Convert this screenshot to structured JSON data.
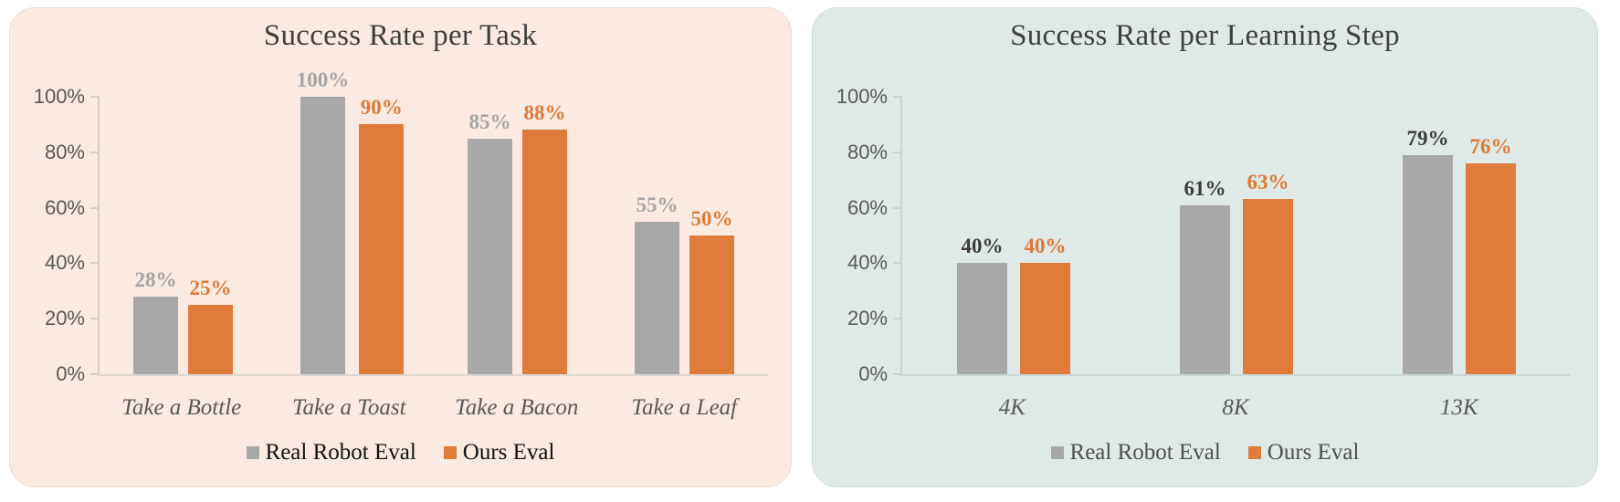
{
  "chart_data": [
    {
      "type": "bar",
      "title": "Success Rate per Task",
      "categories": [
        "Take a Bottle",
        "Take a Toast",
        "Take a Bacon",
        "Take a Leaf"
      ],
      "series": [
        {
          "name": "Real Robot Eval",
          "values": [
            28,
            100,
            85,
            55
          ],
          "color": "#a8a8a8",
          "label_color": "#a6a6a6"
        },
        {
          "name": "Ours Eval",
          "values": [
            25,
            90,
            88,
            50
          ],
          "color": "#e07c3b",
          "label_color": "#de7a38"
        }
      ],
      "xlabel": "",
      "ylabel": "",
      "ylim": [
        0,
        100
      ],
      "yticks": [
        0,
        20,
        40,
        60,
        80,
        100
      ],
      "value_suffix": "%",
      "grid": "off",
      "legend_position": "bottom",
      "panel_bg": "#faeae1",
      "title_color": "#3f3f3f",
      "axis_label_color": "#595959"
    },
    {
      "type": "bar",
      "title": "Success Rate per Learning Step",
      "categories": [
        "4K",
        "8K",
        "13K"
      ],
      "series": [
        {
          "name": "Real Robot Eval",
          "values": [
            40,
            61,
            79
          ],
          "color": "#a8a8a8",
          "label_color": "#3b3b3b"
        },
        {
          "name": "Ours Eval",
          "values": [
            40,
            63,
            76
          ],
          "color": "#e07c3b",
          "label_color": "#de7a38"
        }
      ],
      "xlabel": "",
      "ylabel": "",
      "ylim": [
        0,
        100
      ],
      "yticks": [
        0,
        20,
        40,
        60,
        80,
        100
      ],
      "value_suffix": "%",
      "grid": "off",
      "legend_position": "bottom",
      "panel_bg": "#dfe9e8",
      "title_color": "#3f3f3f",
      "axis_label_color": "#595959"
    }
  ]
}
